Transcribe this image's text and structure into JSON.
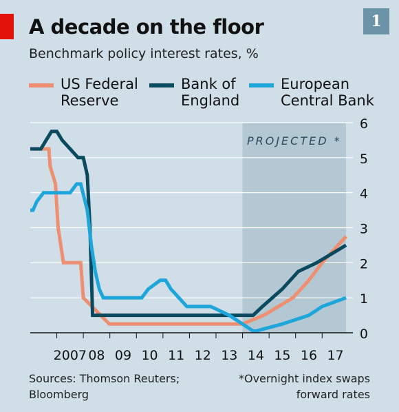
{
  "header": {
    "title": "A decade on the floor",
    "subtitle": "Benchmark policy interest rates, %",
    "badge": "1"
  },
  "legend": [
    {
      "label": "US Federal\nReserve",
      "color": "#ee8f71"
    },
    {
      "label": "Bank of\nEngland",
      "color": "#0b4a5e"
    },
    {
      "label": "European\nCentral Bank",
      "color": "#1ea6da"
    }
  ],
  "footer": {
    "sources": "Sources: Thomson Reuters;\nBloomberg",
    "note": "*Overnight index swaps\nforward rates"
  },
  "chart_data": {
    "type": "line",
    "x_unit": "year",
    "xlim": [
      2006.0,
      2017.9
    ],
    "ylim": [
      0,
      6
    ],
    "y_ticks": [
      0,
      1,
      2,
      3,
      4,
      5,
      6
    ],
    "y_tick_labels": [
      "0",
      "1",
      "2",
      "3",
      "4",
      "5",
      "6"
    ],
    "x_ticks": [
      2007,
      2008,
      2009,
      2010,
      2011,
      2012,
      2013,
      2014,
      2015,
      2016,
      2017
    ],
    "x_tick_labels": [
      "2007",
      "08",
      "09",
      "10",
      "11",
      "12",
      "13",
      "14",
      "15",
      "16",
      "17"
    ],
    "projected_region": {
      "from": 2014.0,
      "to": 2017.9,
      "label": "PROJECTED *",
      "color": "#b4c8d4"
    },
    "series": [
      {
        "name": "US Federal Reserve",
        "color": "#ee8f71",
        "x": [
          2006.0,
          2006.7,
          2006.75,
          2006.85,
          2006.95,
          2007.05,
          2007.25,
          2007.35,
          2007.9,
          2008.0,
          2008.98,
          2014.0,
          2014.8,
          2015.9,
          2016.5,
          2017.0,
          2017.9
        ],
        "y": [
          5.25,
          5.25,
          4.75,
          4.5,
          4.25,
          3.0,
          2.0,
          2.0,
          2.0,
          1.0,
          0.25,
          0.25,
          0.5,
          1.0,
          1.5,
          2.0,
          2.75
        ]
      },
      {
        "name": "Bank of England",
        "color": "#0b4a5e",
        "x": [
          2006.0,
          2006.4,
          2006.6,
          2006.8,
          2007.0,
          2007.2,
          2007.5,
          2007.8,
          2008.0,
          2008.15,
          2008.25,
          2008.35,
          2014.0,
          2014.4,
          2014.75,
          2015.5,
          2016.1,
          2016.8,
          2017.9
        ],
        "y": [
          5.25,
          5.25,
          5.5,
          5.75,
          5.75,
          5.5,
          5.25,
          5.0,
          5.0,
          4.5,
          3.0,
          0.5,
          0.5,
          0.5,
          0.75,
          1.25,
          1.75,
          2.0,
          2.5
        ]
      },
      {
        "name": "European Central Bank",
        "color": "#1ea6da",
        "x": [
          2006.0,
          2006.1,
          2006.25,
          2006.5,
          2006.9,
          2007.3,
          2007.5,
          2007.75,
          2007.9,
          2008.15,
          2008.3,
          2008.45,
          2008.6,
          2008.75,
          2010.2,
          2010.45,
          2010.9,
          2011.1,
          2011.3,
          2011.6,
          2011.9,
          2012.8,
          2013.5,
          2014.0,
          2014.4,
          2014.5,
          2015.5,
          2016.5,
          2017.0,
          2017.9
        ],
        "y": [
          3.5,
          3.5,
          3.75,
          4.0,
          4.0,
          4.0,
          4.0,
          4.25,
          4.25,
          3.5,
          2.5,
          1.75,
          1.25,
          1.0,
          1.0,
          1.25,
          1.5,
          1.5,
          1.25,
          1.0,
          0.75,
          0.75,
          0.5,
          0.25,
          0.05,
          0.05,
          0.25,
          0.5,
          0.75,
          1.0
        ]
      }
    ]
  }
}
